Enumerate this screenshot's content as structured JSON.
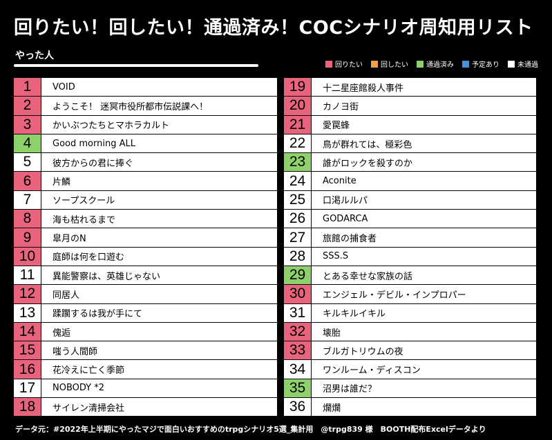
{
  "header": {
    "title": "回りたい！回したい！通過済み！COCシナリオ周知用リスト",
    "subtitle": "やった人"
  },
  "legend": [
    {
      "label": "回りたい",
      "color": "#e8647c",
      "status": "want_play"
    },
    {
      "label": "回したい",
      "color": "#f0a04b",
      "status": "want_run"
    },
    {
      "label": "通過済み",
      "color": "#8ed16b",
      "status": "played"
    },
    {
      "label": "予定あり",
      "color": "#4a90d9",
      "status": "scheduled"
    },
    {
      "label": "未通過",
      "color": "#ffffff",
      "status": "not_played"
    }
  ],
  "colors": {
    "want_play": "#e8647c",
    "played": "#8ed16b",
    "not_played": "#ffffff"
  },
  "left_list": [
    {
      "num": "1",
      "name": "VOID",
      "status": "want_play"
    },
    {
      "num": "2",
      "name": "ようこそ！ 迷冥市役所都市伝説課へ！",
      "status": "want_play"
    },
    {
      "num": "3",
      "name": "かいぶつたちとマホラカルト",
      "status": "want_play"
    },
    {
      "num": "4",
      "name": "Good morning ALL",
      "status": "played"
    },
    {
      "num": "5",
      "name": "彼方からの君に捧ぐ",
      "status": "not_played"
    },
    {
      "num": "6",
      "name": "片鱗",
      "status": "want_play"
    },
    {
      "num": "7",
      "name": "ソープスクール",
      "status": "not_played"
    },
    {
      "num": "8",
      "name": "海も枯れるまで",
      "status": "want_play"
    },
    {
      "num": "9",
      "name": "皐月のN",
      "status": "want_play"
    },
    {
      "num": "10",
      "name": "庭師は何を口遊む",
      "status": "want_play"
    },
    {
      "num": "11",
      "name": "異能警察は、英雄じゃない",
      "status": "not_played"
    },
    {
      "num": "12",
      "name": "同居人",
      "status": "want_play"
    },
    {
      "num": "13",
      "name": "蹂躙するは我が手にて",
      "status": "not_played"
    },
    {
      "num": "14",
      "name": "傀逅",
      "status": "want_play"
    },
    {
      "num": "15",
      "name": "嗤う人間師",
      "status": "want_play"
    },
    {
      "num": "16",
      "name": "花冷えに亡く季節",
      "status": "want_play"
    },
    {
      "num": "17",
      "name": "NOBODY *2",
      "status": "not_played"
    },
    {
      "num": "18",
      "name": "サイレン清掃会社",
      "status": "want_play"
    }
  ],
  "right_list": [
    {
      "num": "19",
      "name": "十二星座館殺人事件",
      "status": "want_play"
    },
    {
      "num": "20",
      "name": "カノヨ街",
      "status": "want_play"
    },
    {
      "num": "21",
      "name": "愛罠蜂",
      "status": "want_play"
    },
    {
      "num": "22",
      "name": "鳥が群れては、極彩色",
      "status": "not_played"
    },
    {
      "num": "23",
      "name": "誰がロックを殺すのか",
      "status": "played"
    },
    {
      "num": "24",
      "name": "Aconite",
      "status": "not_played"
    },
    {
      "num": "25",
      "name": "口渇ルルパ",
      "status": "not_played"
    },
    {
      "num": "26",
      "name": "GODARCA",
      "status": "not_played"
    },
    {
      "num": "27",
      "name": "旅館の捕食者",
      "status": "not_played"
    },
    {
      "num": "28",
      "name": "SSS.S",
      "status": "not_played"
    },
    {
      "num": "29",
      "name": "とある幸せな家族の話",
      "status": "played"
    },
    {
      "num": "30",
      "name": "エンジェル・デビル・インプロパー",
      "status": "want_play"
    },
    {
      "num": "31",
      "name": "キルキルイキル",
      "status": "not_played"
    },
    {
      "num": "32",
      "name": "壊胎",
      "status": "want_play"
    },
    {
      "num": "33",
      "name": "ブルガトリウムの夜",
      "status": "want_play"
    },
    {
      "num": "34",
      "name": "ワンルーム・ディスコン",
      "status": "not_played"
    },
    {
      "num": "35",
      "name": "沼男は誰だ？",
      "status": "played"
    },
    {
      "num": "36",
      "name": "爛爛",
      "status": "not_played"
    }
  ],
  "footer": {
    "text": "データ元：#2022年上半期にやったマジで面白いおすすめのtrpgシナリオ5選_集計用　@trpg839 様　BOOTH配布Excelデータより"
  }
}
